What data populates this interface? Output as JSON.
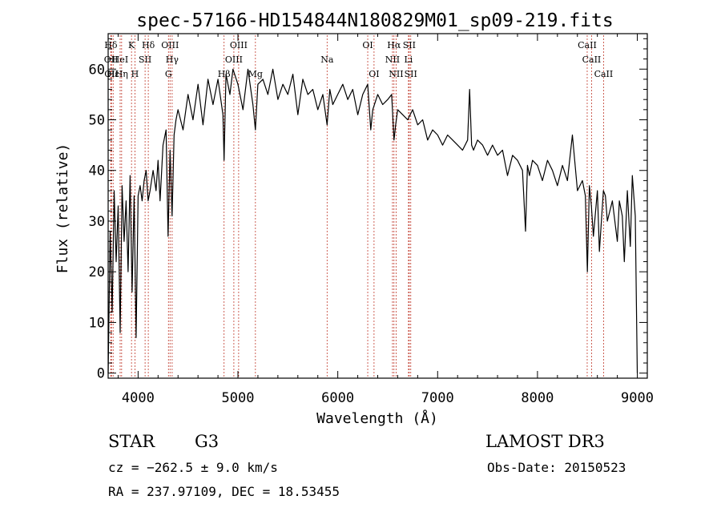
{
  "chart_data": {
    "type": "line",
    "title": "spec-57166-HD154844N180829M01_sp09-219.fits",
    "xlabel": "Wavelength (Å)",
    "ylabel": "Flux (relative)",
    "xlim": [
      3700,
      9100
    ],
    "ylim": [
      -1,
      67
    ],
    "xticks": [
      4000,
      5000,
      6000,
      7000,
      8000,
      9000
    ],
    "yticks": [
      0,
      10,
      20,
      30,
      40,
      50,
      60
    ],
    "series": [
      {
        "name": "spectrum",
        "x": [
          3700,
          3720,
          3740,
          3760,
          3780,
          3800,
          3820,
          3840,
          3860,
          3880,
          3900,
          3920,
          3940,
          3960,
          3980,
          4000,
          4020,
          4040,
          4060,
          4080,
          4100,
          4120,
          4150,
          4180,
          4200,
          4220,
          4250,
          4280,
          4300,
          4320,
          4340,
          4360,
          4380,
          4400,
          4450,
          4500,
          4550,
          4600,
          4650,
          4700,
          4750,
          4800,
          4850,
          4861,
          4880,
          4920,
          4950,
          5000,
          5050,
          5100,
          5150,
          5175,
          5200,
          5250,
          5300,
          5350,
          5400,
          5450,
          5500,
          5550,
          5600,
          5650,
          5700,
          5750,
          5800,
          5850,
          5893,
          5920,
          5950,
          6000,
          6050,
          6100,
          6150,
          6200,
          6250,
          6300,
          6330,
          6350,
          6400,
          6450,
          6500,
          6540,
          6563,
          6580,
          6600,
          6650,
          6700,
          6750,
          6800,
          6850,
          6900,
          6950,
          7000,
          7050,
          7100,
          7150,
          7200,
          7250,
          7300,
          7320,
          7340,
          7360,
          7400,
          7450,
          7500,
          7550,
          7600,
          7650,
          7700,
          7750,
          7800,
          7850,
          7880,
          7900,
          7920,
          7950,
          8000,
          8050,
          8100,
          8150,
          8200,
          8250,
          8300,
          8350,
          8400,
          8450,
          8480,
          8500,
          8520,
          8540,
          8560,
          8600,
          8620,
          8660,
          8680,
          8700,
          8750,
          8800,
          8820,
          8850,
          8870,
          8900,
          8930,
          8950,
          8980,
          9000
        ],
        "values": [
          0,
          28,
          12,
          36,
          22,
          33,
          8,
          37,
          26,
          34,
          20,
          39,
          16,
          35,
          7,
          35,
          37,
          34,
          38,
          40,
          34,
          36,
          40,
          36,
          42,
          34,
          45,
          48,
          27,
          44,
          31,
          47,
          50,
          52,
          48,
          55,
          50,
          57,
          49,
          58,
          53,
          58,
          51,
          42,
          59,
          55,
          60,
          57,
          52,
          60,
          53,
          48,
          57,
          58,
          55,
          60,
          54,
          57,
          55,
          59,
          51,
          58,
          55,
          56,
          52,
          55,
          49,
          56,
          53,
          55,
          57,
          54,
          56,
          51,
          55,
          57,
          48,
          52,
          55,
          53,
          54,
          55,
          46,
          49,
          52,
          51,
          50,
          52,
          49,
          50,
          46,
          48,
          47,
          45,
          47,
          46,
          45,
          44,
          46,
          56,
          45,
          44,
          46,
          45,
          43,
          45,
          43,
          44,
          39,
          43,
          42,
          40,
          28,
          41,
          39,
          42,
          41,
          38,
          42,
          40,
          37,
          41,
          38,
          47,
          36,
          38,
          35,
          20,
          37,
          33,
          27,
          36,
          24,
          36,
          35,
          30,
          34,
          26,
          34,
          31,
          22,
          36,
          25,
          39,
          31,
          0
        ]
      }
    ],
    "line_markers": [
      {
        "label": "Hδ",
        "x": 3727,
        "row": 0
      },
      {
        "label": "OII",
        "x": 3729,
        "row": 1
      },
      {
        "label": "OII",
        "x": 3733,
        "row": 2
      },
      {
        "label": "Hε",
        "x": 3750,
        "row": 2
      },
      {
        "label": "Hη",
        "x": 3835,
        "row": 2
      },
      {
        "label": "HeI",
        "x": 3820,
        "row": 1
      },
      {
        "label": "K",
        "x": 3934,
        "row": 0
      },
      {
        "label": "H",
        "x": 3968,
        "row": 2
      },
      {
        "label": "SII",
        "x": 4070,
        "row": 1
      },
      {
        "label": "Hδ",
        "x": 4102,
        "row": 0
      },
      {
        "label": "OIII",
        "x": 4320,
        "row": 0
      },
      {
        "label": "Hγ",
        "x": 4341,
        "row": 1
      },
      {
        "label": "G",
        "x": 4304,
        "row": 2
      },
      {
        "label": "Hβ",
        "x": 4861,
        "row": 2
      },
      {
        "label": "OIII",
        "x": 5007,
        "row": 0
      },
      {
        "label": "OIII",
        "x": 4959,
        "row": 1
      },
      {
        "label": "Mg",
        "x": 5175,
        "row": 2
      },
      {
        "label": "Na",
        "x": 5893,
        "row": 1
      },
      {
        "label": "OI",
        "x": 6300,
        "row": 0
      },
      {
        "label": "OI",
        "x": 6363,
        "row": 2
      },
      {
        "label": "Hα",
        "x": 6563,
        "row": 0
      },
      {
        "label": "NII",
        "x": 6548,
        "row": 1
      },
      {
        "label": "NII",
        "x": 6584,
        "row": 2
      },
      {
        "label": "SII",
        "x": 6716,
        "row": 0
      },
      {
        "label": "Li",
        "x": 6708,
        "row": 1
      },
      {
        "label": "SII",
        "x": 6731,
        "row": 2
      },
      {
        "label": "CaII",
        "x": 8498,
        "row": 0
      },
      {
        "label": "CaII",
        "x": 8542,
        "row": 1
      },
      {
        "label": "CaII",
        "x": 8662,
        "row": 2
      }
    ]
  },
  "info": {
    "object_class": "STAR",
    "subclass": "G3",
    "survey": "LAMOST DR3",
    "cz": "cz = −262.5 ± 9.0 km/s",
    "obs_date": "Obs-Date: 20150523",
    "coords": "RA = 237.97109, DEC =  18.53455"
  }
}
